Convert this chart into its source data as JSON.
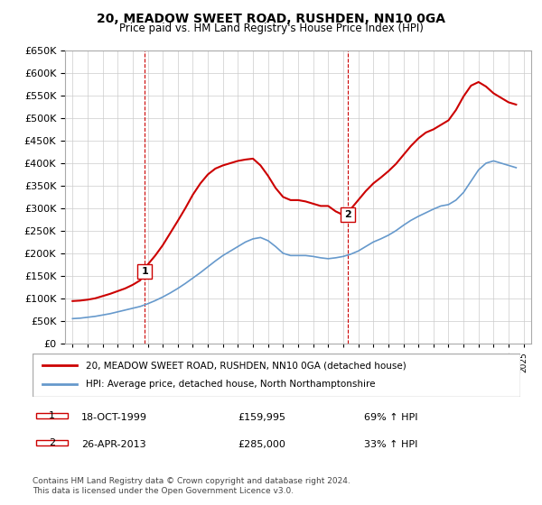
{
  "title": "20, MEADOW SWEET ROAD, RUSHDEN, NN10 0GA",
  "subtitle": "Price paid vs. HM Land Registry's House Price Index (HPI)",
  "legend_property": "20, MEADOW SWEET ROAD, RUSHDEN, NN10 0GA (detached house)",
  "legend_hpi": "HPI: Average price, detached house, North Northamptonshire",
  "footer": "Contains HM Land Registry data © Crown copyright and database right 2024.\nThis data is licensed under the Open Government Licence v3.0.",
  "sale1_label": "1",
  "sale1_date": "18-OCT-1999",
  "sale1_price": "£159,995",
  "sale1_hpi": "69% ↑ HPI",
  "sale1_year": 1999.8,
  "sale1_value": 159995,
  "sale2_label": "2",
  "sale2_date": "26-APR-2013",
  "sale2_price": "£285,000",
  "sale2_hpi": "33% ↑ HPI",
  "sale2_year": 2013.32,
  "sale2_value": 285000,
  "property_color": "#cc0000",
  "hpi_color": "#6699cc",
  "dashed_color": "#cc0000",
  "background_color": "#ffffff",
  "grid_color": "#cccccc",
  "ylim": [
    0,
    650000
  ],
  "yticks": [
    0,
    50000,
    100000,
    150000,
    200000,
    250000,
    300000,
    350000,
    400000,
    450000,
    500000,
    550000,
    600000,
    650000
  ],
  "hpi_x": [
    1995,
    1995.5,
    1996,
    1996.5,
    1997,
    1997.5,
    1998,
    1998.5,
    1999,
    1999.5,
    2000,
    2000.5,
    2001,
    2001.5,
    2002,
    2002.5,
    2003,
    2003.5,
    2004,
    2004.5,
    2005,
    2005.5,
    2006,
    2006.5,
    2007,
    2007.5,
    2008,
    2008.5,
    2009,
    2009.5,
    2010,
    2010.5,
    2011,
    2011.5,
    2012,
    2012.5,
    2013,
    2013.5,
    2014,
    2014.5,
    2015,
    2015.5,
    2016,
    2016.5,
    2017,
    2017.5,
    2018,
    2018.5,
    2019,
    2019.5,
    2020,
    2020.5,
    2021,
    2021.5,
    2022,
    2022.5,
    2023,
    2023.5,
    2024,
    2024.5
  ],
  "hpi_y": [
    55000,
    56000,
    58000,
    60000,
    63000,
    66000,
    70000,
    74000,
    78000,
    82000,
    88000,
    95000,
    103000,
    112000,
    122000,
    133000,
    145000,
    157000,
    170000,
    183000,
    195000,
    205000,
    215000,
    225000,
    232000,
    235000,
    228000,
    215000,
    200000,
    195000,
    195000,
    195000,
    193000,
    190000,
    188000,
    190000,
    193000,
    198000,
    205000,
    215000,
    225000,
    232000,
    240000,
    250000,
    262000,
    273000,
    282000,
    290000,
    298000,
    305000,
    308000,
    318000,
    335000,
    360000,
    385000,
    400000,
    405000,
    400000,
    395000,
    390000
  ],
  "prop_x": [
    1995,
    1995.5,
    1996,
    1996.5,
    1997,
    1997.5,
    1998,
    1998.5,
    1999,
    1999.5,
    1999.8,
    2000,
    2000.5,
    2001,
    2001.5,
    2002,
    2002.5,
    2003,
    2003.5,
    2004,
    2004.5,
    2005,
    2005.5,
    2006,
    2006.5,
    2007,
    2007.5,
    2008,
    2008.5,
    2009,
    2009.5,
    2010,
    2010.5,
    2011,
    2011.5,
    2012,
    2012.5,
    2013,
    2013.32,
    2013.5,
    2014,
    2014.5,
    2015,
    2015.5,
    2016,
    2016.5,
    2017,
    2017.5,
    2018,
    2018.5,
    2019,
    2019.5,
    2020,
    2020.5,
    2021,
    2021.5,
    2022,
    2022.5,
    2023,
    2023.5,
    2024,
    2024.5
  ],
  "prop_y": [
    94000,
    95000,
    97000,
    100000,
    105000,
    110000,
    116000,
    122000,
    130000,
    140000,
    159995,
    175000,
    195000,
    218000,
    245000,
    272000,
    300000,
    330000,
    355000,
    375000,
    388000,
    395000,
    400000,
    405000,
    408000,
    410000,
    395000,
    372000,
    345000,
    325000,
    318000,
    318000,
    315000,
    310000,
    305000,
    305000,
    293000,
    285000,
    285000,
    298000,
    318000,
    338000,
    355000,
    368000,
    382000,
    398000,
    418000,
    438000,
    455000,
    468000,
    475000,
    485000,
    495000,
    518000,
    548000,
    572000,
    580000,
    570000,
    555000,
    545000,
    535000,
    530000
  ]
}
